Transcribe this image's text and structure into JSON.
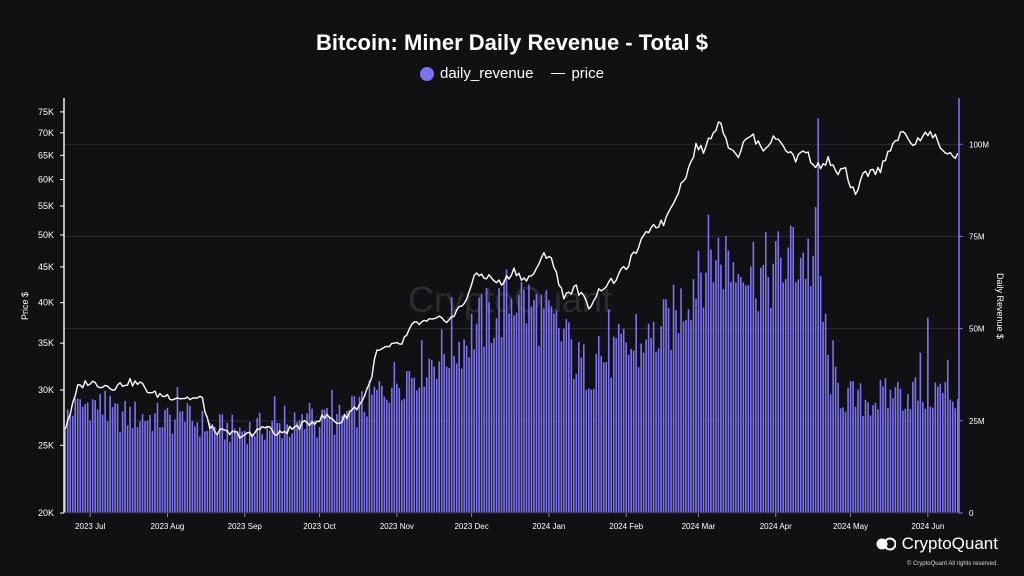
{
  "chart_data": {
    "type": "bar+line",
    "title": "Bitcoin: Miner Daily Revenue - Total $",
    "legend": [
      {
        "name": "daily_revenue",
        "marker": "dot",
        "color": "#7b73f2"
      },
      {
        "name": "price",
        "marker": "line",
        "color": "#ffffff"
      }
    ],
    "watermark": "CryptoQuant",
    "left_axis": {
      "label": "Price $",
      "scale": "log",
      "range": [
        20000,
        78000
      ],
      "ticks": [
        {
          "v": 20000,
          "label": "20K"
        },
        {
          "v": 25000,
          "label": "25K"
        },
        {
          "v": 30000,
          "label": "30K"
        },
        {
          "v": 35000,
          "label": "35K"
        },
        {
          "v": 40000,
          "label": "40K"
        },
        {
          "v": 45000,
          "label": "45K"
        },
        {
          "v": 50000,
          "label": "50K"
        },
        {
          "v": 55000,
          "label": "55K"
        },
        {
          "v": 60000,
          "label": "60K"
        },
        {
          "v": 65000,
          "label": "65K"
        },
        {
          "v": 70000,
          "label": "70K"
        },
        {
          "v": 75000,
          "label": "75K"
        }
      ]
    },
    "right_axis": {
      "label": "Daily Revenue $",
      "scale": "linear",
      "range": [
        0,
        112000000
      ],
      "ticks": [
        {
          "v": 0,
          "label": "0"
        },
        {
          "v": 25000000,
          "label": "25M"
        },
        {
          "v": 50000000,
          "label": "50M"
        },
        {
          "v": 75000000,
          "label": "75M"
        },
        {
          "v": 100000000,
          "label": "100M"
        }
      ]
    },
    "x_axis": {
      "start": "2023-06-21",
      "days": 359,
      "ticks": [
        {
          "day": 10,
          "label": "2023 Jul"
        },
        {
          "day": 41,
          "label": "2023 Aug"
        },
        {
          "day": 72,
          "label": "2023 Sep"
        },
        {
          "day": 102,
          "label": "2023 Oct"
        },
        {
          "day": 133,
          "label": "2023 Nov"
        },
        {
          "day": 163,
          "label": "2023 Dec"
        },
        {
          "day": 194,
          "label": "2024 Jan"
        },
        {
          "day": 225,
          "label": "2024 Feb"
        },
        {
          "day": 254,
          "label": "2024 Mar"
        },
        {
          "day": 285,
          "label": "2024 Apr"
        },
        {
          "day": 315,
          "label": "2024 May"
        },
        {
          "day": 346,
          "label": "2024 Jun"
        }
      ]
    },
    "price_anchors": [
      [
        0,
        26500
      ],
      [
        3,
        28500
      ],
      [
        5,
        30200
      ],
      [
        9,
        30800
      ],
      [
        15,
        30500
      ],
      [
        20,
        30300
      ],
      [
        25,
        30800
      ],
      [
        30,
        30600
      ],
      [
        35,
        29600
      ],
      [
        45,
        29300
      ],
      [
        55,
        29100
      ],
      [
        58,
        26400
      ],
      [
        62,
        26100
      ],
      [
        70,
        25900
      ],
      [
        75,
        25800
      ],
      [
        80,
        26800
      ],
      [
        85,
        25800
      ],
      [
        88,
        26200
      ],
      [
        95,
        26700
      ],
      [
        100,
        27100
      ],
      [
        105,
        27500
      ],
      [
        110,
        26900
      ],
      [
        115,
        28100
      ],
      [
        118,
        28500
      ],
      [
        122,
        30500
      ],
      [
        125,
        34000
      ],
      [
        130,
        34500
      ],
      [
        135,
        35000
      ],
      [
        140,
        37300
      ],
      [
        145,
        37500
      ],
      [
        150,
        37800
      ],
      [
        155,
        38000
      ],
      [
        160,
        40000
      ],
      [
        165,
        44000
      ],
      [
        170,
        43500
      ],
      [
        175,
        42500
      ],
      [
        180,
        44500
      ],
      [
        185,
        43000
      ],
      [
        190,
        45000
      ],
      [
        192,
        47000
      ],
      [
        195,
        46500
      ],
      [
        198,
        42500
      ],
      [
        200,
        41000
      ],
      [
        205,
        42000
      ],
      [
        210,
        39500
      ],
      [
        215,
        42000
      ],
      [
        220,
        43000
      ],
      [
        225,
        45000
      ],
      [
        230,
        48000
      ],
      [
        235,
        51500
      ],
      [
        240,
        52000
      ],
      [
        245,
        57000
      ],
      [
        250,
        62000
      ],
      [
        253,
        67000
      ],
      [
        256,
        66000
      ],
      [
        260,
        70500
      ],
      [
        263,
        73000
      ],
      [
        265,
        68000
      ],
      [
        270,
        65000
      ],
      [
        272,
        67500
      ],
      [
        275,
        69500
      ],
      [
        280,
        66500
      ],
      [
        285,
        69000
      ],
      [
        290,
        66000
      ],
      [
        293,
        64000
      ],
      [
        296,
        66500
      ],
      [
        300,
        63500
      ],
      [
        303,
        62500
      ],
      [
        306,
        64000
      ],
      [
        309,
        61500
      ],
      [
        313,
        62000
      ],
      [
        315,
        58000
      ],
      [
        318,
        57500
      ],
      [
        320,
        61000
      ],
      [
        323,
        61500
      ],
      [
        327,
        62000
      ],
      [
        330,
        66000
      ],
      [
        333,
        68000
      ],
      [
        336,
        70000
      ],
      [
        340,
        67500
      ],
      [
        343,
        68500
      ],
      [
        346,
        70000
      ],
      [
        349,
        69000
      ],
      [
        351,
        66500
      ],
      [
        353,
        66000
      ],
      [
        355,
        65000
      ],
      [
        359,
        64800
      ]
    ],
    "revenue_anchors_M": [
      [
        0,
        26
      ],
      [
        10,
        31
      ],
      [
        20,
        27
      ],
      [
        30,
        27
      ],
      [
        40,
        26
      ],
      [
        50,
        26
      ],
      [
        58,
        24
      ],
      [
        70,
        23
      ],
      [
        80,
        24
      ],
      [
        90,
        24
      ],
      [
        100,
        25
      ],
      [
        110,
        26
      ],
      [
        118,
        29
      ],
      [
        125,
        33
      ],
      [
        130,
        36
      ],
      [
        135,
        38
      ],
      [
        140,
        40
      ],
      [
        145,
        42
      ],
      [
        150,
        44
      ],
      [
        155,
        46
      ],
      [
        160,
        48
      ],
      [
        165,
        52
      ],
      [
        170,
        54
      ],
      [
        175,
        57
      ],
      [
        180,
        61
      ],
      [
        185,
        58
      ],
      [
        190,
        56
      ],
      [
        195,
        52
      ],
      [
        200,
        49
      ],
      [
        205,
        42
      ],
      [
        210,
        40
      ],
      [
        215,
        43
      ],
      [
        220,
        44
      ],
      [
        225,
        46
      ],
      [
        230,
        45
      ],
      [
        235,
        48
      ],
      [
        240,
        51
      ],
      [
        245,
        55
      ],
      [
        250,
        62
      ],
      [
        255,
        69
      ],
      [
        260,
        72
      ],
      [
        265,
        71
      ],
      [
        270,
        68
      ],
      [
        275,
        69
      ],
      [
        280,
        66
      ],
      [
        285,
        68
      ],
      [
        290,
        70
      ],
      [
        295,
        72
      ],
      [
        300,
        70
      ],
      [
        303,
        65
      ],
      [
        305,
        44
      ],
      [
        308,
        36
      ],
      [
        312,
        33
      ],
      [
        318,
        31
      ],
      [
        325,
        32
      ],
      [
        330,
        32
      ],
      [
        335,
        33
      ],
      [
        340,
        34
      ],
      [
        345,
        33
      ],
      [
        350,
        34
      ],
      [
        355,
        33
      ],
      [
        359,
        32
      ]
    ],
    "revenue_spikes_M": [
      [
        302,
        107
      ],
      [
        346,
        53
      ]
    ]
  },
  "brand": {
    "name": "CryptoQuant",
    "copyright": "© CryptoQuant All rights reserved."
  }
}
